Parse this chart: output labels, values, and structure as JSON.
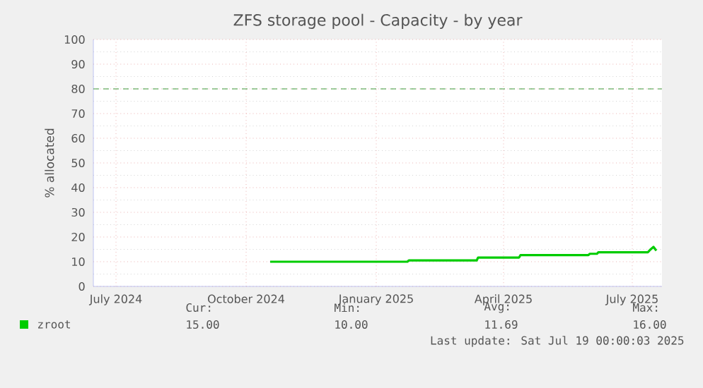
{
  "chart_data": {
    "type": "line",
    "title": "ZFS storage pool - Capacity - by year",
    "ylabel": "% allocated",
    "xlim": [
      "2024-06-15",
      "2025-07-22"
    ],
    "xticks": [
      {
        "value": "2024-07-01",
        "label": "July 2024"
      },
      {
        "value": "2024-10-01",
        "label": "October 2024"
      },
      {
        "value": "2025-01-01",
        "label": "January 2025"
      },
      {
        "value": "2025-04-01",
        "label": "April 2025"
      },
      {
        "value": "2025-07-01",
        "label": "July 2025"
      }
    ],
    "ylim": [
      0,
      100
    ],
    "yticks": [
      0,
      10,
      20,
      30,
      40,
      50,
      60,
      70,
      80,
      90,
      100
    ],
    "grid": true,
    "legend": "bottom",
    "ref_lines": [
      {
        "axis": "y",
        "value": 80,
        "color": "#3c9c3c",
        "line_style": "dashed"
      }
    ],
    "series": [
      {
        "name": "zroot",
        "color": "#00cc00",
        "x": [
          "2024-10-18",
          "2025-01-23",
          "2025-01-24",
          "2025-03-13",
          "2025-03-14",
          "2025-04-12",
          "2025-04-13",
          "2025-05-31",
          "2025-06-01",
          "2025-06-06",
          "2025-06-07",
          "2025-07-12",
          "2025-07-14",
          "2025-07-16",
          "2025-07-18"
        ],
        "values": [
          10,
          10,
          10.5,
          10.5,
          11.7,
          11.7,
          12.7,
          12.7,
          13.2,
          13.2,
          13.8,
          13.8,
          15,
          16,
          14.5
        ]
      }
    ],
    "annotations": [
      "Cur:",
      "Min:",
      "Avg:",
      "Max:",
      "15.00",
      "10.00",
      "11.69",
      "16.00",
      "Last update: Sat Jul 19 00:00:03 2025"
    ]
  }
}
